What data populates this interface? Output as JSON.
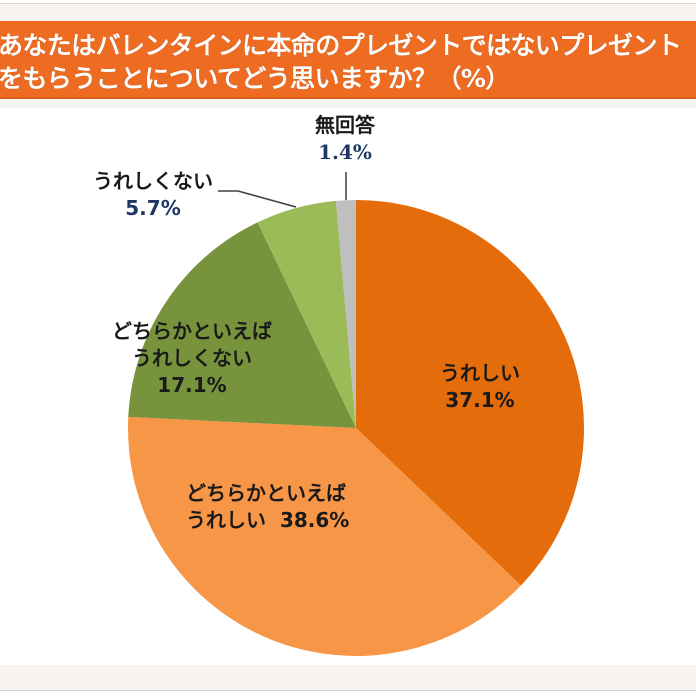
{
  "header": {
    "title_line1": "あなたはバレンタインに本命のプレゼントではないプレゼント",
    "title_line2": "をもらうことについてどう思いますか？（%）"
  },
  "labels": {
    "no_answer": {
      "name": "無回答",
      "pct": "1.4%"
    },
    "not_happy": {
      "name": "うれしくない",
      "pct": "5.7%"
    },
    "somewhat_not_happy": {
      "name1": "どちらかといえば",
      "name2": "うれしくない",
      "pct": "17.1%"
    },
    "happy": {
      "name": "うれしい",
      "pct": "37.1%"
    },
    "somewhat_happy": {
      "name1": "どちらかといえば",
      "name2": "うれしい",
      "pct": "38.6%"
    }
  },
  "colors": {
    "header": "#ee6c22",
    "happy": "#e46c0a",
    "somewhat_happy": "#f79646",
    "somewhat_not_happy": "#77933c",
    "not_happy": "#9bbb59",
    "no_answer": "#bfbfbf"
  },
  "chart_data": {
    "type": "pie",
    "title": "あなたはバレンタインに本命のプレゼントではないプレゼントをもらうことについてどう思いますか？（%）",
    "categories": [
      "うれしい",
      "どちらかといえばうれしい",
      "どちらかといえばうれしくない",
      "うれしくない",
      "無回答"
    ],
    "values": [
      37.1,
      38.6,
      17.1,
      5.7,
      1.4
    ],
    "colors": [
      "#e46c0a",
      "#f79646",
      "#77933c",
      "#9bbb59",
      "#bfbfbf"
    ],
    "start_angle": "12 o'clock",
    "direction": "clockwise",
    "unit": "%",
    "legend": "none (data labels)"
  }
}
